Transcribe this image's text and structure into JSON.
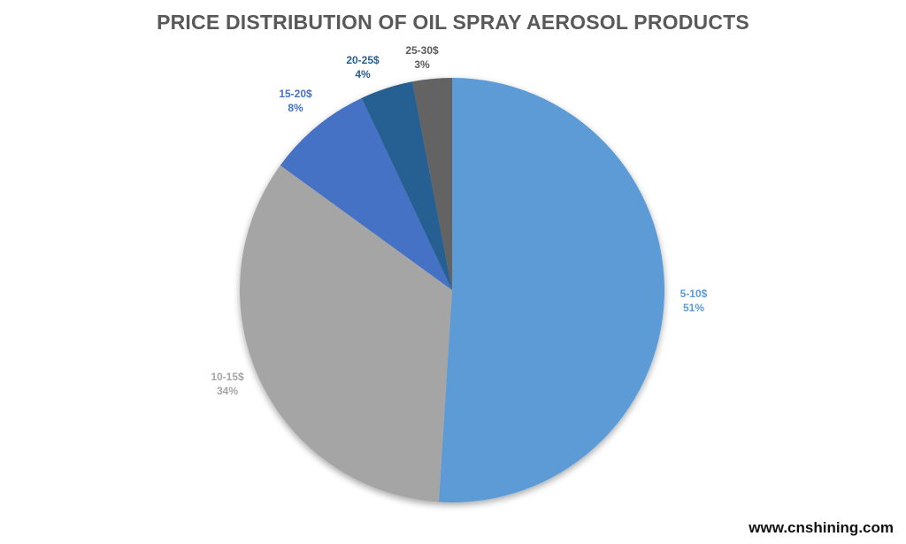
{
  "chart_data": {
    "type": "pie",
    "title": "PRICE DISTRIBUTION OF OIL SPRAY AEROSOL PRODUCTS",
    "categories": [
      "5-10$",
      "10-15$",
      "15-20$",
      "20-25$",
      "25-30$"
    ],
    "values": [
      51,
      34,
      8,
      4,
      3
    ],
    "value_labels": [
      "51%",
      "34%",
      "8%",
      "4%",
      "3%"
    ],
    "colors": [
      "#5b9bd5",
      "#a5a5a5",
      "#4472c4",
      "#255e91",
      "#636363"
    ],
    "label_colors": [
      "#5b9bd5",
      "#a5a5a5",
      "#4472c4",
      "#255e91",
      "#595959"
    ],
    "start_angle_deg": 0,
    "direction": "clockwise",
    "legend": "none (data labels outside)"
  },
  "title": "PRICE DISTRIBUTION OF OIL SPRAY AEROSOL PRODUCTS",
  "labels": [
    {
      "category": "5-10$",
      "percent": "51%"
    },
    {
      "category": "10-15$",
      "percent": "34%"
    },
    {
      "category": "15-20$",
      "percent": "8%"
    },
    {
      "category": "20-25$",
      "percent": "4%"
    },
    {
      "category": "25-30$",
      "percent": "3%"
    }
  ],
  "watermark": "www.cnshining.com"
}
